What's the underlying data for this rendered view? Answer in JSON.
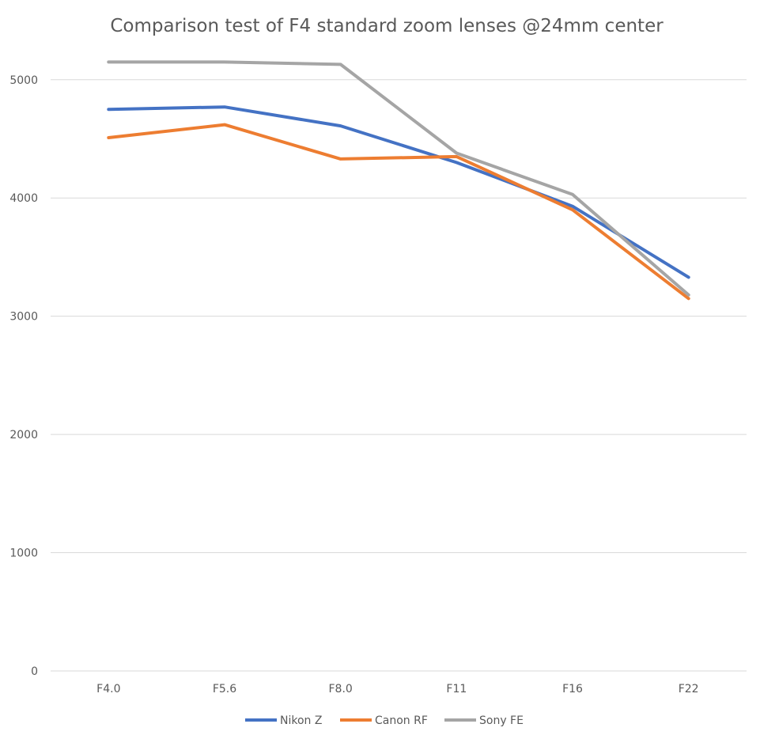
{
  "chart_data": {
    "type": "line",
    "title": "Comparison test of F4 standard zoom lenses @24mm center",
    "xlabel": "",
    "ylabel": "",
    "categories": [
      "F4.0",
      "F5.6",
      "F8.0",
      "F11",
      "F16",
      "F22"
    ],
    "ylim": [
      0,
      5000
    ],
    "yticks": [
      0,
      1000,
      2000,
      3000,
      4000,
      5000
    ],
    "grid": true,
    "legend_position": "bottom",
    "series": [
      {
        "name": "Nikon Z",
        "color": "#4472c4",
        "values": [
          4750,
          4770,
          4610,
          4300,
          3930,
          3330
        ]
      },
      {
        "name": "Canon RF",
        "color": "#ed7d31",
        "values": [
          4510,
          4620,
          4330,
          4350,
          3900,
          3150
        ]
      },
      {
        "name": "Sony FE",
        "color": "#a5a5a5",
        "values": [
          5150,
          5150,
          5130,
          4380,
          4030,
          3180
        ]
      }
    ]
  }
}
